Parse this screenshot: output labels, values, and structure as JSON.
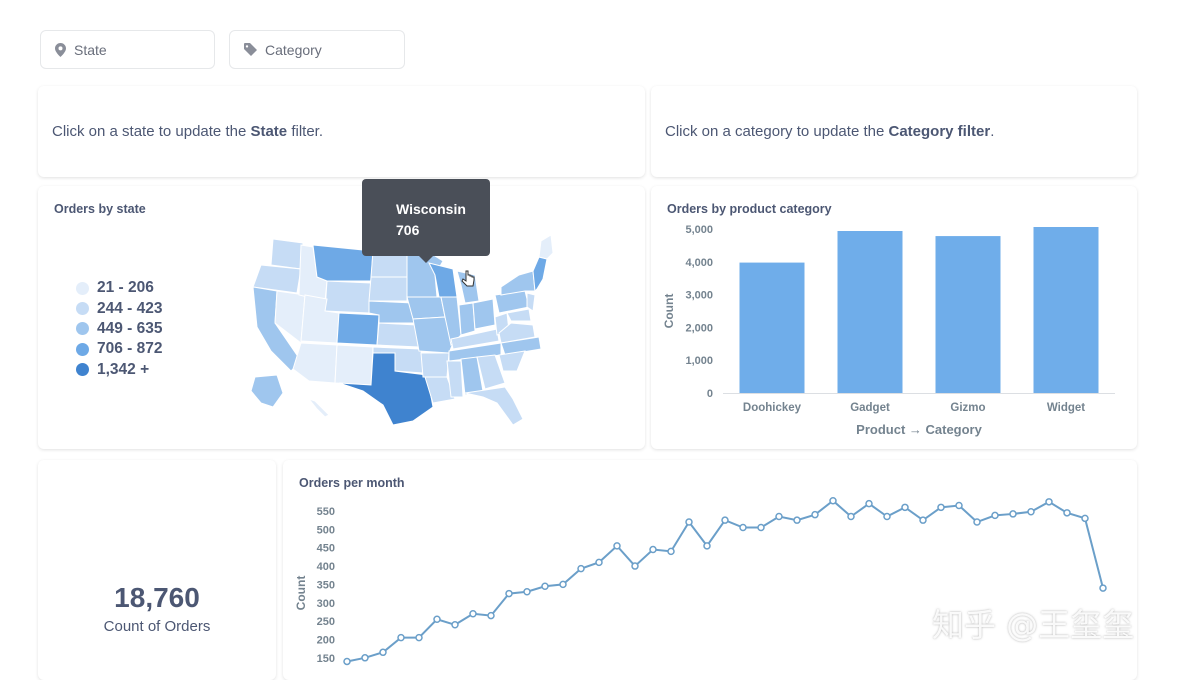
{
  "filters": {
    "state": "State",
    "category": "Category"
  },
  "text_cards": {
    "state": {
      "prefix": "Click on a state to update the ",
      "bold": "State",
      "suffix": " filter."
    },
    "category": {
      "prefix": "Click on a category to update the ",
      "bold": "Category filter",
      "suffix": "."
    }
  },
  "map_card": {
    "title": "Orders by state",
    "legend": [
      {
        "label": "21 - 206",
        "color": "#e4eefa"
      },
      {
        "label": "244 - 423",
        "color": "#c6dcf5"
      },
      {
        "label": "449 - 635",
        "color": "#9fc6ee"
      },
      {
        "label": "706 - 872",
        "color": "#6ea9e6"
      },
      {
        "label": "1,342 +",
        "color": "#3f83cf"
      }
    ],
    "tooltip": {
      "state": "Wisconsin",
      "value": "706"
    }
  },
  "scalar_card": {
    "value": "18,760",
    "label": "Count of Orders"
  },
  "chart_data": [
    {
      "type": "bar",
      "title": "Orders by product category",
      "categories": [
        "Doohickey",
        "Gadget",
        "Gizmo",
        "Widget"
      ],
      "values": [
        3976,
        4939,
        4784,
        5061
      ],
      "xlabel": "Product → Category",
      "ylabel": "Count",
      "ylim": [
        0,
        5000
      ],
      "yticks": [
        0,
        1000,
        2000,
        3000,
        4000,
        5000
      ],
      "ytick_labels": [
        "0",
        "1,000",
        "2,000",
        "3,000",
        "4,000",
        "5,000"
      ],
      "color": "#6fadea"
    },
    {
      "type": "line",
      "title": "Orders per month",
      "ylabel": "Count",
      "yticks": [
        150,
        200,
        250,
        300,
        350,
        400,
        450,
        500,
        550
      ],
      "values": [
        140,
        150,
        165,
        205,
        205,
        255,
        240,
        270,
        265,
        325,
        330,
        345,
        350,
        393,
        410,
        455,
        400,
        445,
        440,
        520,
        455,
        525,
        505,
        505,
        535,
        525,
        540,
        578,
        535,
        570,
        535,
        560,
        525,
        560,
        565,
        520,
        538,
        542,
        548,
        575,
        545,
        530,
        340
      ],
      "color": "#6b9fc9"
    }
  ],
  "watermark": "知乎 @王玺玺"
}
